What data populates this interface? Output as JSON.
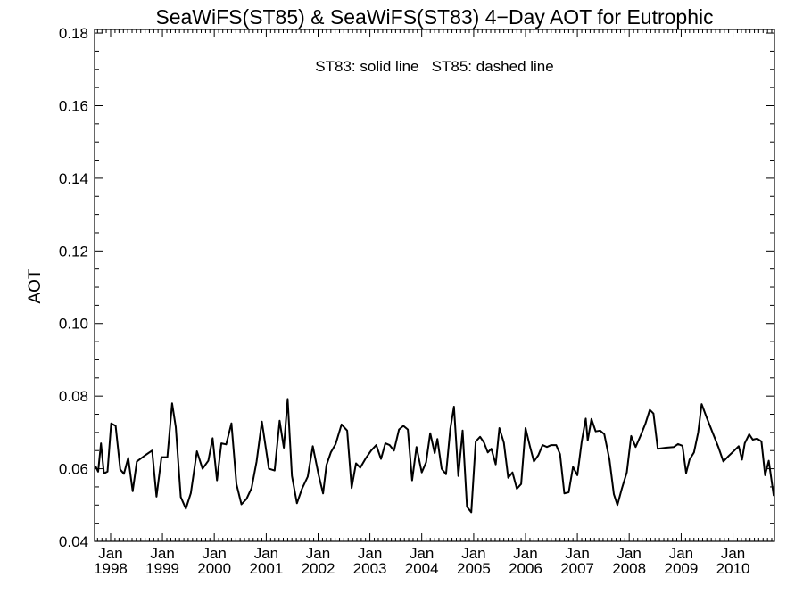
{
  "chart_data": {
    "type": "line",
    "title": "SeaWiFS(ST85) & SeaWiFS(ST83) 4−Day AOT for Eutrophic",
    "annotation": "ST83: solid line   ST85: dashed line",
    "xlabel": "",
    "ylabel": "AOT",
    "xlim": [
      "1997-09-10",
      "2010-10-20"
    ],
    "ylim": [
      0.04,
      0.181
    ],
    "yticks": [
      "0.04",
      "0.06",
      "0.08",
      "0.10",
      "0.12",
      "0.14",
      "0.16",
      "0.18"
    ],
    "xticks": [
      {
        "date": "1998-01-01",
        "month": "Jan",
        "year": "1998"
      },
      {
        "date": "1999-01-01",
        "month": "Jan",
        "year": "1999"
      },
      {
        "date": "2000-01-01",
        "month": "Jan",
        "year": "2000"
      },
      {
        "date": "2001-01-01",
        "month": "Jan",
        "year": "2001"
      },
      {
        "date": "2002-01-01",
        "month": "Jan",
        "year": "2002"
      },
      {
        "date": "2003-01-01",
        "month": "Jan",
        "year": "2003"
      },
      {
        "date": "2004-01-01",
        "month": "Jan",
        "year": "2004"
      },
      {
        "date": "2005-01-01",
        "month": "Jan",
        "year": "2005"
      },
      {
        "date": "2006-01-01",
        "month": "Jan",
        "year": "2006"
      },
      {
        "date": "2007-01-01",
        "month": "Jan",
        "year": "2007"
      },
      {
        "date": "2008-01-01",
        "month": "Jan",
        "year": "2008"
      },
      {
        "date": "2009-01-01",
        "month": "Jan",
        "year": "2009"
      },
      {
        "date": "2010-01-01",
        "month": "Jan",
        "year": "2010"
      }
    ],
    "grid": false,
    "series": [
      {
        "style": "solid",
        "color": "#000000",
        "points": [
          [
            "1997-09-15",
            0.0608
          ],
          [
            "1997-10-05",
            0.0592
          ],
          [
            "1997-10-25",
            0.067
          ],
          [
            "1997-11-15",
            0.0587
          ],
          [
            "1997-12-10",
            0.0592
          ],
          [
            "1998-01-05",
            0.0725
          ],
          [
            "1998-02-05",
            0.0718
          ],
          [
            "1998-03-10",
            0.0598
          ],
          [
            "1998-04-05",
            0.0586
          ],
          [
            "1998-05-05",
            0.063
          ],
          [
            "1998-06-05",
            0.0538
          ],
          [
            "1998-07-05",
            0.062
          ],
          [
            "1998-09-01",
            0.0637
          ],
          [
            "1998-10-20",
            0.065
          ],
          [
            "1998-11-20",
            0.0523
          ],
          [
            "1998-12-25",
            0.0632
          ],
          [
            "1999-02-05",
            0.0632
          ],
          [
            "1999-03-10",
            0.078
          ],
          [
            "1999-04-05",
            0.0715
          ],
          [
            "1999-05-10",
            0.0522
          ],
          [
            "1999-06-15",
            0.049
          ],
          [
            "1999-07-20",
            0.0533
          ],
          [
            "1999-09-01",
            0.0648
          ],
          [
            "1999-10-10",
            0.06
          ],
          [
            "1999-11-20",
            0.0622
          ],
          [
            "1999-12-20",
            0.0684
          ],
          [
            "2000-01-20",
            0.0568
          ],
          [
            "2000-02-20",
            0.067
          ],
          [
            "2000-03-25",
            0.0667
          ],
          [
            "2000-05-01",
            0.0725
          ],
          [
            "2000-06-05",
            0.0558
          ],
          [
            "2000-07-10",
            0.0502
          ],
          [
            "2000-08-15",
            0.0517
          ],
          [
            "2000-09-20",
            0.0547
          ],
          [
            "2000-10-25",
            0.062
          ],
          [
            "2000-12-01",
            0.073
          ],
          [
            "2001-01-20",
            0.06
          ],
          [
            "2001-03-01",
            0.0595
          ],
          [
            "2001-04-05",
            0.0732
          ],
          [
            "2001-05-05",
            0.0658
          ],
          [
            "2001-06-01",
            0.0792
          ],
          [
            "2001-07-01",
            0.058
          ],
          [
            "2001-08-05",
            0.0505
          ],
          [
            "2001-09-10",
            0.0545
          ],
          [
            "2001-10-20",
            0.0578
          ],
          [
            "2001-11-25",
            0.0662
          ],
          [
            "2002-01-05",
            0.0583
          ],
          [
            "2002-02-05",
            0.0532
          ],
          [
            "2002-03-01",
            0.061
          ],
          [
            "2002-04-01",
            0.0645
          ],
          [
            "2002-05-05",
            0.0668
          ],
          [
            "2002-06-15",
            0.0722
          ],
          [
            "2002-07-25",
            0.0705
          ],
          [
            "2002-08-25",
            0.0547
          ],
          [
            "2002-09-25",
            0.0615
          ],
          [
            "2002-10-25",
            0.0603
          ],
          [
            "2002-12-01",
            0.0628
          ],
          [
            "2003-01-10",
            0.065
          ],
          [
            "2003-02-15",
            0.0665
          ],
          [
            "2003-03-20",
            0.0627
          ],
          [
            "2003-04-20",
            0.067
          ],
          [
            "2003-05-20",
            0.0665
          ],
          [
            "2003-06-20",
            0.065
          ],
          [
            "2003-07-25",
            0.0708
          ],
          [
            "2003-08-25",
            0.0718
          ],
          [
            "2003-09-25",
            0.0708
          ],
          [
            "2003-10-25",
            0.0568
          ],
          [
            "2003-11-25",
            0.066
          ],
          [
            "2004-01-01",
            0.059
          ],
          [
            "2004-02-01",
            0.0618
          ],
          [
            "2004-03-01",
            0.0698
          ],
          [
            "2004-04-01",
            0.0643
          ],
          [
            "2004-04-20",
            0.0682
          ],
          [
            "2004-05-20",
            0.06
          ],
          [
            "2004-06-20",
            0.0585
          ],
          [
            "2004-07-20",
            0.071
          ],
          [
            "2004-08-15",
            0.0771
          ],
          [
            "2004-09-15",
            0.058
          ],
          [
            "2004-10-15",
            0.0705
          ],
          [
            "2004-11-15",
            0.0495
          ],
          [
            "2004-12-15",
            0.048
          ],
          [
            "2005-01-15",
            0.0675
          ],
          [
            "2005-02-15",
            0.0688
          ],
          [
            "2005-03-15",
            0.0672
          ],
          [
            "2005-04-10",
            0.0645
          ],
          [
            "2005-05-05",
            0.0655
          ],
          [
            "2005-06-05",
            0.0612
          ],
          [
            "2005-07-01",
            0.0712
          ],
          [
            "2005-08-01",
            0.0672
          ],
          [
            "2005-09-01",
            0.0575
          ],
          [
            "2005-10-01",
            0.059
          ],
          [
            "2005-11-01",
            0.0545
          ],
          [
            "2005-12-01",
            0.0558
          ],
          [
            "2006-01-01",
            0.0712
          ],
          [
            "2006-02-01",
            0.0662
          ],
          [
            "2006-03-01",
            0.062
          ],
          [
            "2006-04-01",
            0.0637
          ],
          [
            "2006-05-01",
            0.0665
          ],
          [
            "2006-06-01",
            0.066
          ],
          [
            "2006-07-01",
            0.0665
          ],
          [
            "2006-08-05",
            0.0665
          ],
          [
            "2006-09-01",
            0.064
          ],
          [
            "2006-10-01",
            0.0532
          ],
          [
            "2006-11-01",
            0.0535
          ],
          [
            "2006-12-01",
            0.0605
          ],
          [
            "2007-01-01",
            0.0582
          ],
          [
            "2007-02-01",
            0.0675
          ],
          [
            "2007-03-01",
            0.0738
          ],
          [
            "2007-03-15",
            0.0678
          ],
          [
            "2007-04-10",
            0.0737
          ],
          [
            "2007-05-10",
            0.0703
          ],
          [
            "2007-06-10",
            0.0705
          ],
          [
            "2007-07-10",
            0.0695
          ],
          [
            "2007-08-15",
            0.0625
          ],
          [
            "2007-09-15",
            0.053
          ],
          [
            "2007-10-10",
            0.05
          ],
          [
            "2007-11-10",
            0.0545
          ],
          [
            "2007-12-15",
            0.059
          ],
          [
            "2008-01-15",
            0.069
          ],
          [
            "2008-02-15",
            0.066
          ],
          [
            "2008-03-20",
            0.069
          ],
          [
            "2008-04-25",
            0.0725
          ],
          [
            "2008-05-25",
            0.0762
          ],
          [
            "2008-06-20",
            0.0752
          ],
          [
            "2008-07-20",
            0.0655
          ],
          [
            "2008-09-15",
            0.0658
          ],
          [
            "2008-11-10",
            0.066
          ],
          [
            "2008-12-10",
            0.0668
          ],
          [
            "2009-01-10",
            0.0663
          ],
          [
            "2009-02-05",
            0.0588
          ],
          [
            "2009-03-01",
            0.0625
          ],
          [
            "2009-04-01",
            0.0645
          ],
          [
            "2009-05-01",
            0.07
          ],
          [
            "2009-05-25",
            0.0778
          ],
          [
            "2009-07-01",
            0.074
          ],
          [
            "2009-08-10",
            0.07
          ],
          [
            "2009-09-20",
            0.066
          ],
          [
            "2009-10-25",
            0.062
          ],
          [
            "2009-12-01",
            0.0635
          ],
          [
            "2010-01-10",
            0.065
          ],
          [
            "2010-02-10",
            0.0662
          ],
          [
            "2010-03-05",
            0.0625
          ],
          [
            "2010-03-25",
            0.067
          ],
          [
            "2010-04-25",
            0.0695
          ],
          [
            "2010-05-20",
            0.068
          ],
          [
            "2010-06-20",
            0.0683
          ],
          [
            "2010-07-20",
            0.0675
          ],
          [
            "2010-08-15",
            0.0582
          ],
          [
            "2010-09-10",
            0.0622
          ],
          [
            "2010-10-15",
            0.0525
          ]
        ]
      }
    ]
  }
}
